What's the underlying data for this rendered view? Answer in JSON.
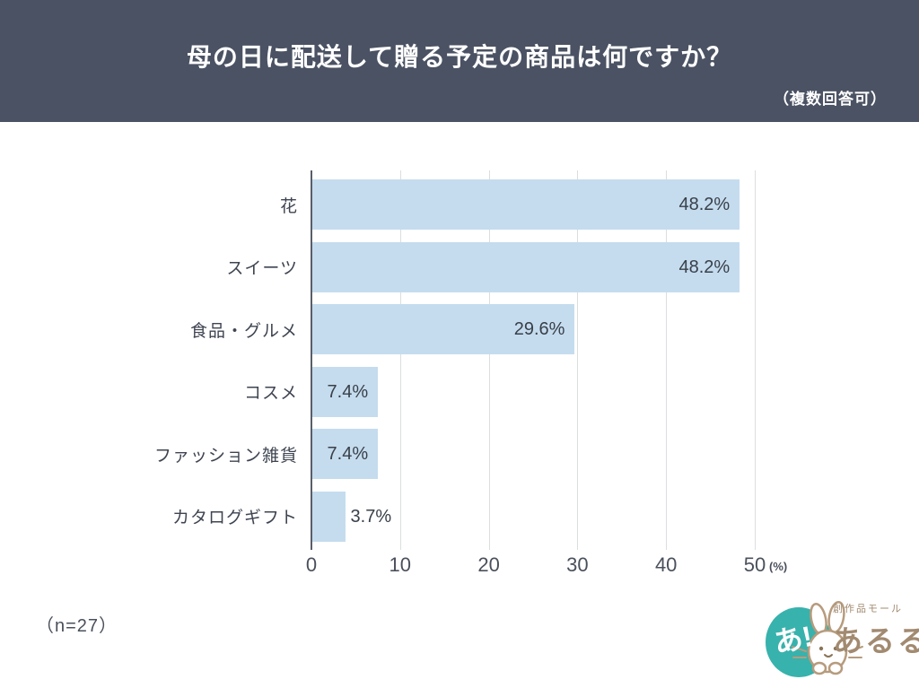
{
  "header": {
    "title": "母の日に配送して贈る予定の商品は何ですか？",
    "note": "（複数回答可）",
    "bg_color": "#4a5263",
    "text_color": "#ffffff"
  },
  "chart_data": {
    "type": "bar",
    "orientation": "horizontal",
    "categories": [
      "花",
      "スイーツ",
      "食品・グルメ",
      "コスメ",
      "ファッション雑貨",
      "カタログギフト"
    ],
    "values": [
      48.2,
      48.2,
      29.6,
      7.4,
      7.4,
      3.7
    ],
    "value_labels": [
      "48.2%",
      "48.2%",
      "29.6%",
      "7.4%",
      "7.4%",
      "3.7%"
    ],
    "x_ticks": [
      0,
      10,
      20,
      30,
      40,
      50
    ],
    "x_unit": "(%)",
    "xlim": [
      0,
      50
    ],
    "grid": true,
    "legend": "none",
    "bar_color": "#c5dcee",
    "gridline_color": "#dcdddf",
    "axis_color": "#585e69",
    "category_label_color": "#3e4450",
    "value_label_color": "#394049",
    "tick_label_color": "#4a505b"
  },
  "footer": {
    "sample_size": "（n=27）",
    "logo": {
      "badge_text": "あ!",
      "tagline": "創作品モール",
      "brand": "あるる",
      "teal_color": "#38b2ac",
      "brown_color": "#a28a70"
    }
  }
}
